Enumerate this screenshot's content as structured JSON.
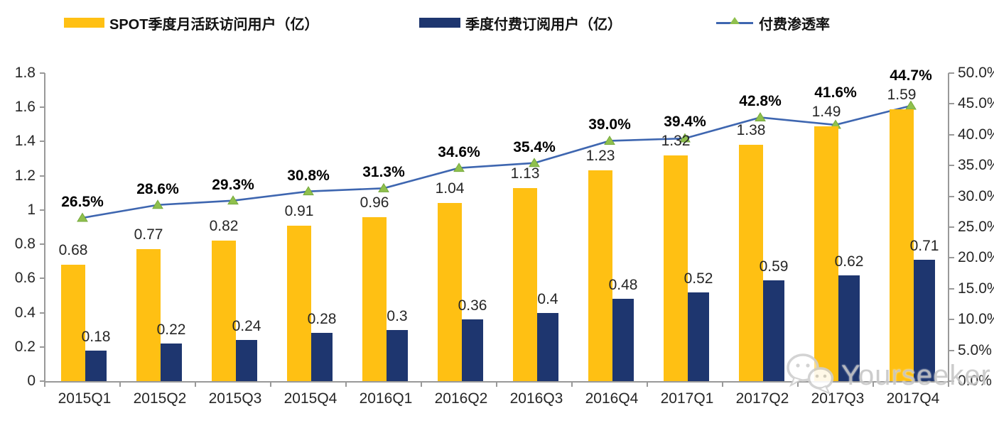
{
  "legend": [
    {
      "label": "SPOT季度月活跃访问用户（亿）",
      "type": "bar",
      "color": "#FFC013"
    },
    {
      "label": "季度付费订阅用户（亿）",
      "type": "bar",
      "color": "#1E366F"
    },
    {
      "label": "付费渗透率",
      "type": "line",
      "color": "#3E66B0",
      "marker_color": "#8FC04D"
    }
  ],
  "chart_data": {
    "type": "bar",
    "subtype": "grouped-bars-with-line-overlay",
    "categories": [
      "2015Q1",
      "2015Q2",
      "2015Q3",
      "2015Q4",
      "2016Q1",
      "2016Q2",
      "2016Q3",
      "2016Q4",
      "2017Q1",
      "2017Q2",
      "2017Q3",
      "2017Q4"
    ],
    "series": [
      {
        "name": "SPOT季度月活跃访问用户（亿）",
        "type": "bar",
        "axis": "left",
        "color": "#FFC013",
        "values": [
          0.68,
          0.77,
          0.82,
          0.91,
          0.96,
          1.04,
          1.13,
          1.23,
          1.32,
          1.38,
          1.49,
          1.59
        ],
        "labels": [
          "0.68",
          "0.77",
          "0.82",
          "0.91",
          "0.96",
          "1.04",
          "1.13",
          "1.23",
          "1.32",
          "1.38",
          "1.49",
          "1.59"
        ]
      },
      {
        "name": "季度付费订阅用户（亿）",
        "type": "bar",
        "axis": "left",
        "color": "#1E366F",
        "values": [
          0.18,
          0.22,
          0.24,
          0.28,
          0.3,
          0.36,
          0.4,
          0.48,
          0.52,
          0.59,
          0.62,
          0.71
        ],
        "labels": [
          "0.18",
          "0.22",
          "0.24",
          "0.28",
          "0.3",
          "0.36",
          "0.4",
          "0.48",
          "0.52",
          "0.59",
          "0.62",
          "0.71"
        ]
      },
      {
        "name": "付费渗透率",
        "type": "line",
        "axis": "right",
        "color": "#3E66B0",
        "marker": "triangle",
        "marker_color": "#8FC04D",
        "values": [
          26.5,
          28.6,
          29.3,
          30.8,
          31.3,
          34.6,
          35.4,
          39.0,
          39.4,
          42.8,
          41.6,
          44.7
        ],
        "labels": [
          "26.5%",
          "28.6%",
          "29.3%",
          "30.8%",
          "31.3%",
          "34.6%",
          "35.4%",
          "39.0%",
          "39.4%",
          "42.8%",
          "41.6%",
          "44.7%"
        ]
      }
    ],
    "left_axis": {
      "min": 0,
      "max": 1.8,
      "ticks": [
        "0",
        "0.2",
        "0.4",
        "0.6",
        "0.8",
        "1",
        "1.2",
        "1.4",
        "1.6",
        "1.8"
      ]
    },
    "right_axis": {
      "min": 0,
      "max": 50,
      "ticks": [
        "0.0%",
        "5.0%",
        "10.0%",
        "15.0%",
        "20.0%",
        "25.0%",
        "30.0%",
        "35.0%",
        "40.0%",
        "45.0%",
        "50.0%"
      ]
    },
    "grid": false,
    "legend_position": "top",
    "title": ""
  },
  "watermark": {
    "text": "Yourseeker",
    "icon": "wechat-chat-bubbles-icon"
  }
}
